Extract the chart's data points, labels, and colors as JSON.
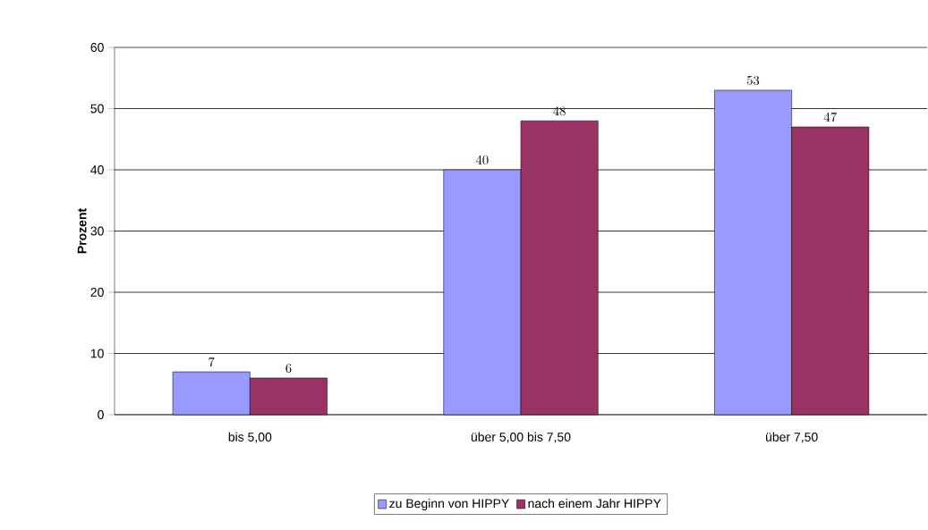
{
  "chart_data": {
    "type": "bar",
    "ylabel": "Prozent",
    "categories": [
      "bis 5,00",
      "über 5,00 bis 7,50",
      "über 7,50"
    ],
    "series": [
      {
        "name": "zu Beginn von HIPPY",
        "color": "#9999ff",
        "values": [
          7,
          40,
          53
        ]
      },
      {
        "name": "nach einem Jahr HIPPY",
        "color": "#993366",
        "values": [
          6,
          48,
          47
        ]
      }
    ],
    "ylim": [
      0,
      60
    ],
    "yticks": [
      0,
      10,
      20,
      30,
      40,
      50,
      60
    ],
    "grid": "y",
    "legend": "bottom",
    "data_labels": true
  }
}
